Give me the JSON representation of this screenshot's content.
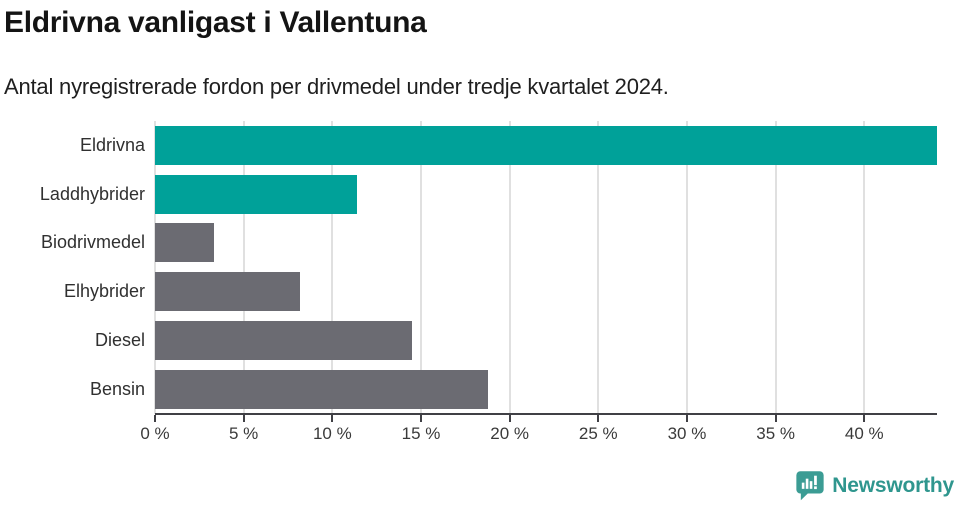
{
  "header": {
    "title": "Eldrivna vanligast i Vallentuna",
    "subtitle": "Antal nyregistrerade fordon per drivmedel under tredje kvartalet 2024."
  },
  "chart_data": {
    "type": "bar",
    "orientation": "horizontal",
    "title": "Eldrivna vanligast i Vallentuna",
    "subtitle": "Antal nyregistrerade fordon per drivmedel under tredje kvartalet 2024.",
    "categories": [
      "Eldrivna",
      "Laddhybrider",
      "Biodrivmedel",
      "Elhybrider",
      "Diesel",
      "Bensin"
    ],
    "values": [
      44.1,
      11.4,
      3.3,
      8.2,
      14.5,
      18.8
    ],
    "unit": "%",
    "bar_colors": [
      "#00a199",
      "#00a199",
      "#6b6b72",
      "#6b6b72",
      "#6b6b72",
      "#6b6b72"
    ],
    "xlim": [
      0,
      44.1
    ],
    "x_ticks": [
      0,
      5,
      10,
      15,
      20,
      25,
      30,
      35,
      40
    ],
    "x_tick_labels": [
      "0 %",
      "5 %",
      "10 %",
      "15 %",
      "20 %",
      "25 %",
      "30 %",
      "35 %",
      "40 %"
    ],
    "grid": "vertical-on",
    "legend": "none",
    "xlabel": "",
    "ylabel": ""
  },
  "colors": {
    "accent_teal": "#00a199",
    "neutral_gray": "#6b6b72",
    "gridline": "#e0e0e0",
    "axis": "#404045",
    "brand_teal": "#2f968e"
  },
  "footer": {
    "brand": "Newsworthy"
  },
  "icons": {
    "brand_icon": "newsworthy-speech-bubble-barchart-icon"
  }
}
